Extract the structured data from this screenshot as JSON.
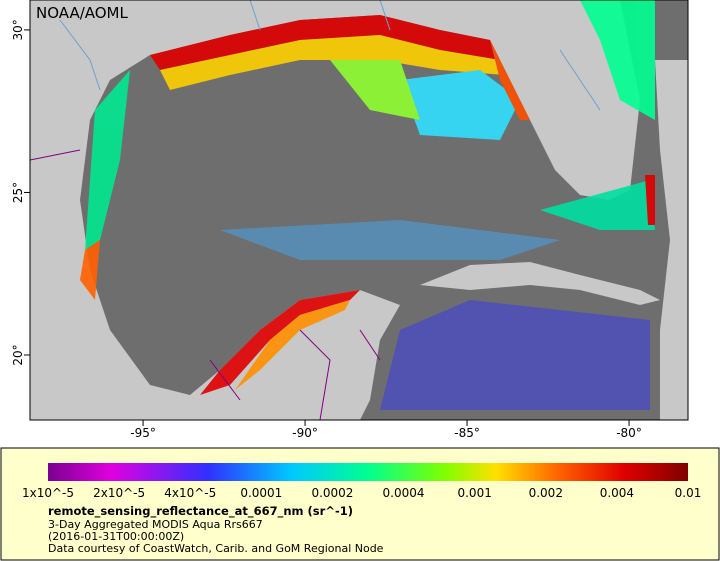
{
  "map": {
    "credit": "NOAA/AOML",
    "xlim": [
      -98.49,
      -78.18
    ],
    "ylim": [
      18,
      30.92
    ],
    "lon_ticks": [
      {
        "value": -95,
        "label": "-95°"
      },
      {
        "value": -90,
        "label": "-90°"
      },
      {
        "value": -85,
        "label": "-85°"
      },
      {
        "value": -80,
        "label": "-80°"
      }
    ],
    "lat_ticks": [
      {
        "value": 30,
        "label": "30°"
      },
      {
        "value": 25,
        "label": "25°"
      },
      {
        "value": 20,
        "label": "20°"
      }
    ]
  },
  "colorbar": {
    "labels": [
      "1x10^-5",
      "2x10^-5",
      "4x10^-5",
      "0.0001",
      "0.0002",
      "0.0004",
      "0.001",
      "0.002",
      "0.004",
      "0.01"
    ],
    "title": "remote_sensing_reflectance_at_667_nm (sr^-1)",
    "lines": [
      "3-Day Aggregated MODIS Aqua Rrs667",
      "(2016-01-31T00:00:00Z)",
      "Data courtesy of CoastWatch, Carib. and GoM Regional Node"
    ]
  }
}
